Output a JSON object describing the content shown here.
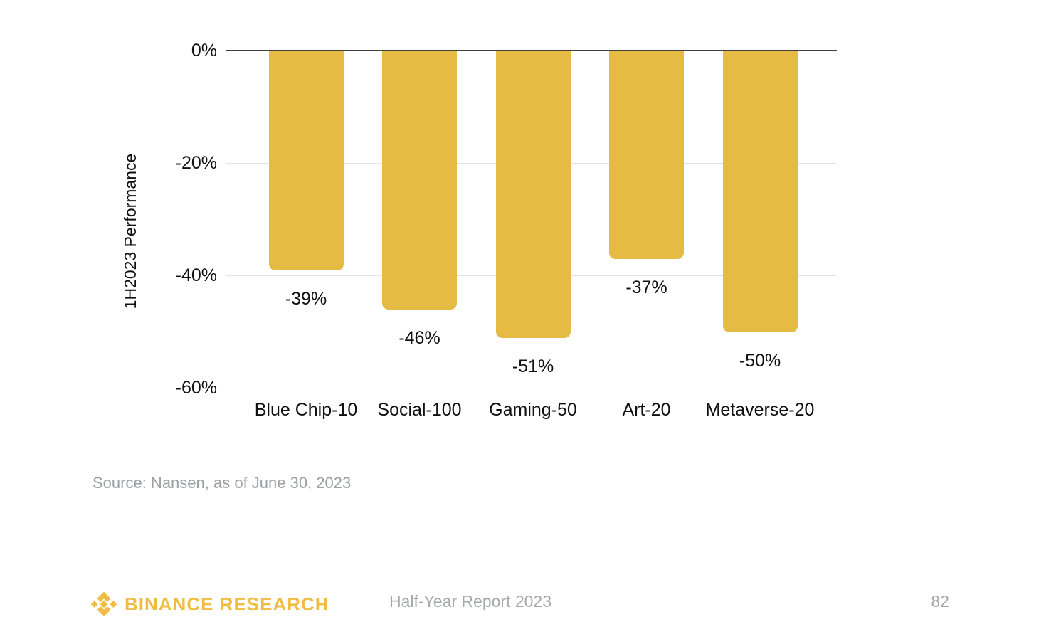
{
  "chart_data": {
    "type": "bar",
    "title": "",
    "categories": [
      "Blue Chip-10",
      "Social-100",
      "Gaming-50",
      "Art-20",
      "Metaverse-20"
    ],
    "values": [
      -39,
      -46,
      -51,
      -37,
      -50
    ],
    "value_labels": [
      "-39%",
      "-46%",
      "-51%",
      "-37%",
      "-50%"
    ],
    "xlabel": "",
    "ylabel": "1H2023 Performance",
    "ylim": [
      -60,
      0
    ],
    "y_ticks": [
      "0%",
      "-20%",
      "-40%",
      "-60%"
    ],
    "y_tick_values": [
      0,
      -20,
      -40,
      -60
    ],
    "grid": true,
    "legend": false,
    "bar_color": "#E5BB43"
  },
  "source_note": "Source: Nansen, as of June 30, 2023",
  "footer": {
    "logo_icon": "binance-diamond-icon",
    "brand": "BINANCE RESEARCH",
    "report_title": "Half-Year Report 2023",
    "page_number": "82"
  },
  "colors": {
    "bar": "#E5BB43",
    "brand_gold": "#F0BD44",
    "muted_text": "#9B9FA3",
    "axis_line": "#3F3F3F",
    "gridline": "#E3E3E3"
  }
}
